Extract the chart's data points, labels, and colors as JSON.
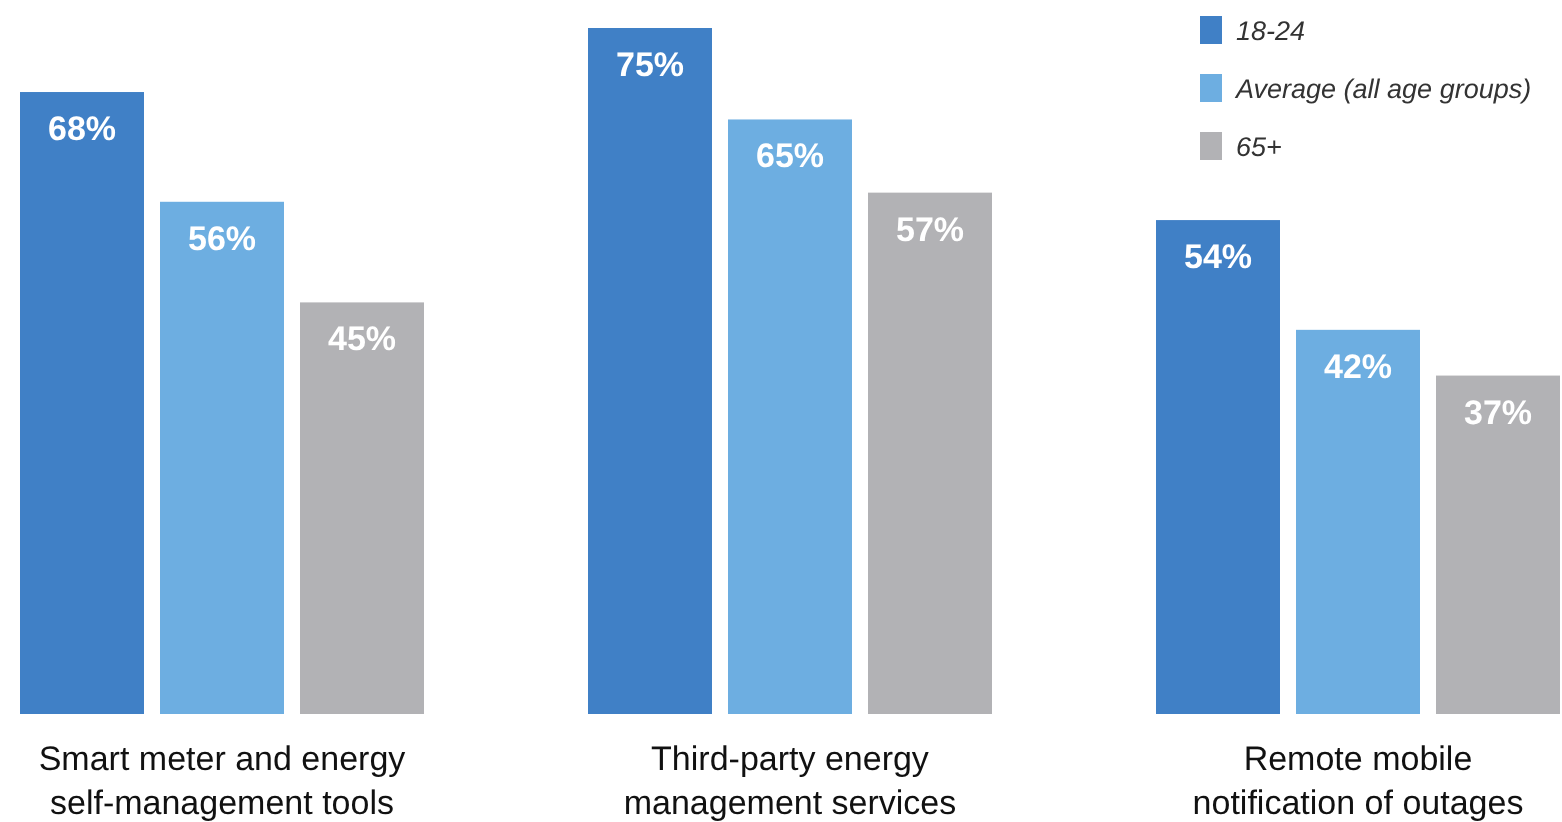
{
  "chart_data": {
    "type": "bar",
    "categories": [
      "Smart meter and energy self-management tools",
      "Third-party energy management services",
      "Remote mobile notification of outages"
    ],
    "series": [
      {
        "name": "18-24",
        "color": "#4080c6",
        "values": [
          68,
          75,
          54
        ],
        "value_labels": [
          "68%",
          "75%",
          "54%"
        ]
      },
      {
        "name": "Average (all age groups)",
        "color": "#6daee1",
        "values": [
          56,
          65,
          42
        ],
        "value_labels": [
          "56%",
          "65%",
          "42%"
        ]
      },
      {
        "name": "65+",
        "color": "#b2b2b5",
        "values": [
          45,
          57,
          37
        ],
        "value_labels": [
          "45%",
          "57%",
          "37%"
        ]
      }
    ],
    "legend": "top right"
  }
}
